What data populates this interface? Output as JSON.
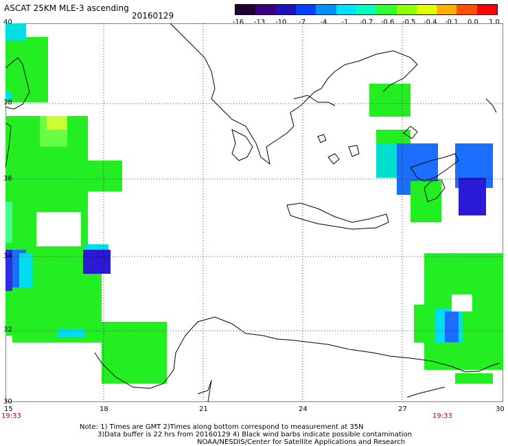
{
  "header": {
    "title": "ASCAT 25KM MLE-3 ascending",
    "date": "20160129"
  },
  "colorbar": {
    "labels": [
      "-16",
      "-13",
      "-10",
      "-7",
      "-4",
      "-1",
      "-0.7",
      "-0.6",
      "-0.5",
      "-0.4",
      "-0.1",
      "0.0",
      "1.0"
    ],
    "colors": [
      "#200030",
      "#3a0080",
      "#2010c0",
      "#0040ff",
      "#0090ff",
      "#00e0ff",
      "#00ffc0",
      "#30ff30",
      "#90ff00",
      "#e0ff00",
      "#ffb000",
      "#ff5000",
      "#ff0000"
    ]
  },
  "map": {
    "lat_labels": [
      "40",
      "38",
      "36",
      "34",
      "32",
      "30"
    ],
    "lon_labels": [
      "15",
      "18",
      "21",
      "24",
      "27",
      "30"
    ],
    "time_labels": [
      "19:33",
      "19:33"
    ]
  },
  "colors": {
    "green": "#22ee22",
    "light_green": "#66ff44",
    "yellow_green": "#ccff33",
    "cyan": "#00ddee",
    "blue": "#1a6fff",
    "deep_blue": "#2a1ad6"
  },
  "notes": [
    "Note: 1) Times are GMT 2)Times along bottom correspond to measurement at 35N",
    "3)Data buffer is 22 hrs from 20160129 4) Black wind barbs indicate possible contamination",
    "NOAA/NESDIS/Center for Satellite Applications and Research"
  ]
}
